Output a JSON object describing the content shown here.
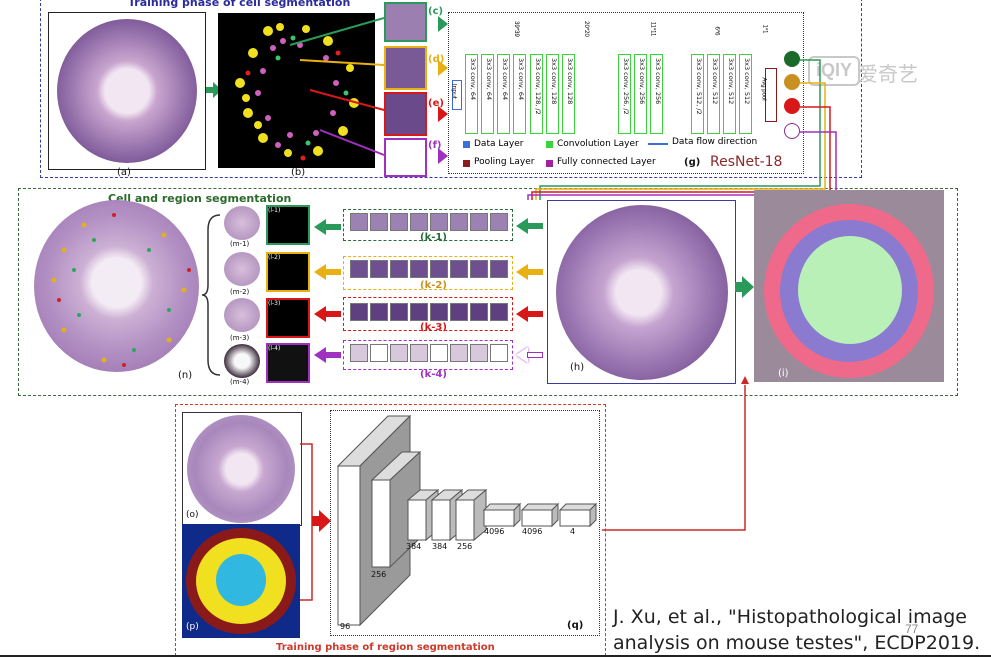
{
  "top_panel": {
    "title": "Training phase of cell segmentation",
    "labels": {
      "a": "(a)",
      "b": "(b)",
      "c": "(c)",
      "d": "(d)",
      "e": "(e)",
      "f": "(f)",
      "g": "(g)"
    }
  },
  "resnet": {
    "name": "ResNet-18",
    "input_label": "Input",
    "layers": [
      "3x3 conv, 64",
      "3x3 conv, 64",
      "3x3 conv, 64",
      "3x3 conv, 64",
      "3x3 conv, 128, /2",
      "3x3 conv, 128",
      "3x3 conv, 128",
      "3x3 conv, 256, /2",
      "3x3 conv, 256",
      "3x3 conv, 256",
      "3x3 conv, 512, /2",
      "3x3 conv, 512",
      "3x3 conv, 512",
      "3x3 conv, 512"
    ],
    "avg_pool": "Avg pool",
    "sizes": [
      "39*39",
      "20*20",
      "11*11",
      "6*6",
      "1*1"
    ],
    "legend": {
      "data": "Data Layer",
      "conv": "Convolution Layer",
      "flow": "Data flow direction",
      "pool": "Pooling Layer",
      "fc": "Fully connected Layer"
    },
    "colors": {
      "data": "#3a6fd8",
      "conv": "#3cd23c",
      "pool": "#8b1a1a",
      "fc": "#a020a0"
    }
  },
  "middle_panel": {
    "title": "Cell and region segmentation",
    "k_labels": [
      "(k-1)",
      "(k-2)",
      "(k-3)",
      "(k-4)"
    ],
    "m_labels": [
      "(m-1)",
      "(m-2)",
      "(m-3)",
      "(m-4)"
    ],
    "l_labels": [
      "(l-1)",
      "(l-2)",
      "(l-3)",
      "(l-4)"
    ],
    "other_labels": {
      "h": "(h)",
      "i": "(i)",
      "n": "(n)"
    }
  },
  "bottom_panel": {
    "title": "Training phase of region segmentation",
    "labels": {
      "o": "(o)",
      "p": "(p)",
      "q": "(q)"
    },
    "cnn_sizes": [
      "96",
      "256",
      "384",
      "384",
      "256",
      "4096",
      "4096",
      "4"
    ]
  },
  "watermark": "爱奇艺",
  "citation": {
    "line1": "J. Xu, et al., \"Histopathological image",
    "line2": "analysis on mouse testes\", ECDP2019.",
    "page": "77"
  },
  "colors": {
    "top_border": "#3a3aa0",
    "middle_border": "#3a6a3a",
    "bottom_border": "#cc3a2a",
    "green": "#2a9a5a",
    "yellow": "#e8b010",
    "red": "#d81818",
    "purple": "#a030c0",
    "tissue": "#b58fc0"
  }
}
